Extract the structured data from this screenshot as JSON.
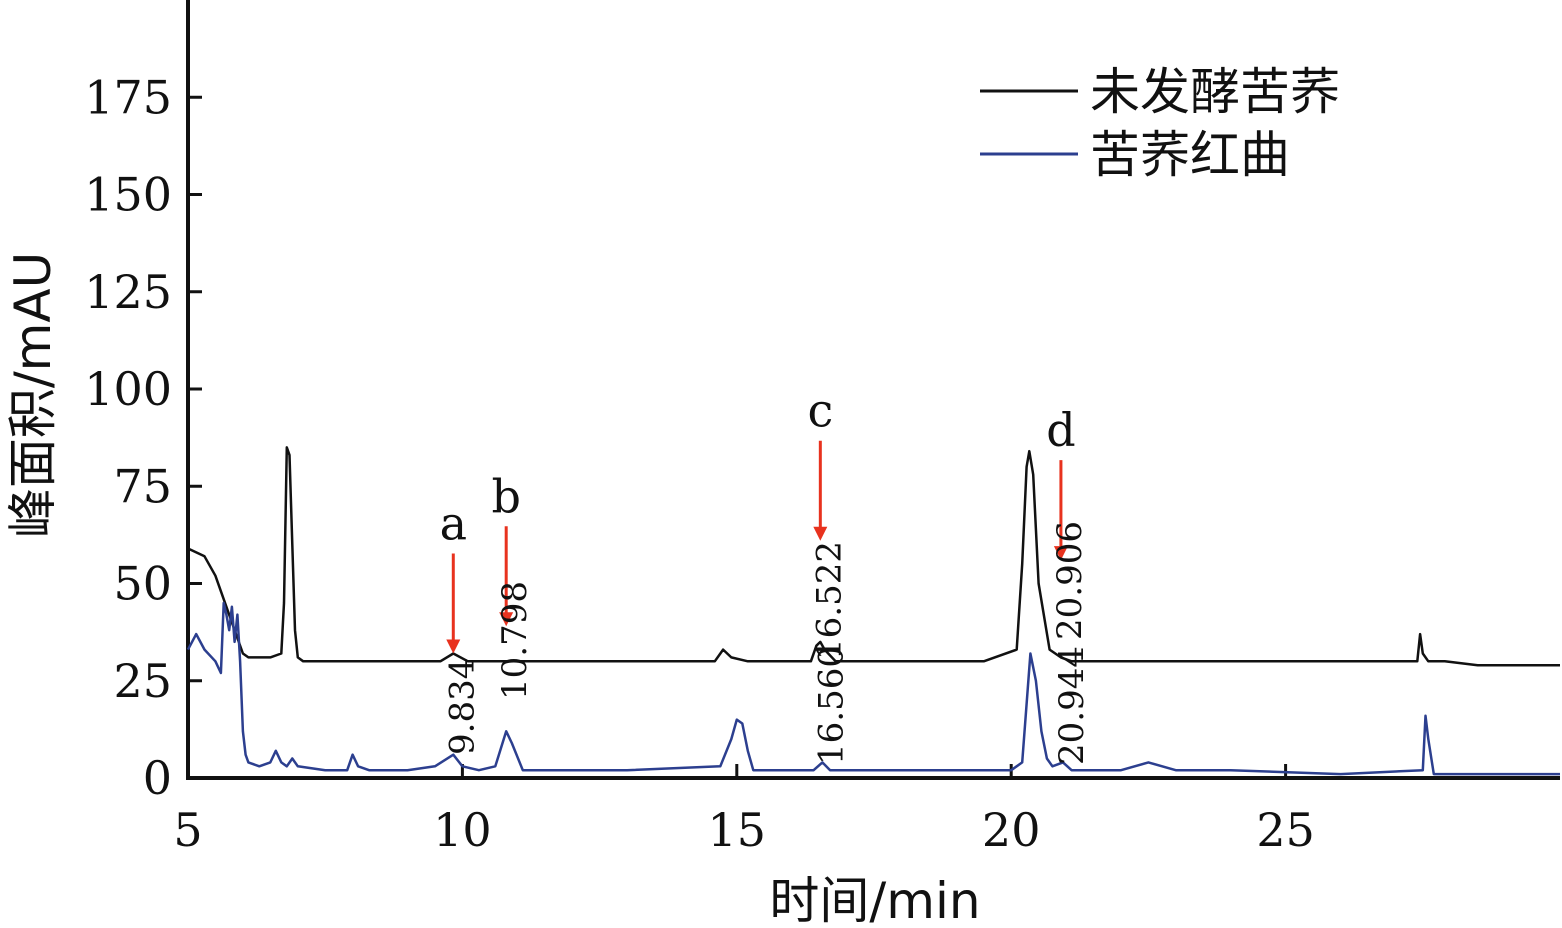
{
  "chart_data": {
    "type": "line",
    "title": "",
    "xlabel": "时间/min",
    "ylabel": "峰面积/mAU",
    "xlim": [
      5,
      30
    ],
    "ylim": [
      0,
      200
    ],
    "xticks": [
      5,
      10,
      15,
      20,
      25
    ],
    "yticks": [
      0,
      25,
      50,
      75,
      100,
      125,
      150,
      175
    ],
    "grid": false,
    "legend_position": "top-right",
    "series": [
      {
        "name": "未发酵苦荞",
        "color": "#111111",
        "x": [
          5.0,
          5.3,
          5.5,
          5.7,
          5.9,
          6.0,
          6.1,
          6.3,
          6.5,
          6.7,
          6.75,
          6.8,
          6.85,
          6.9,
          6.95,
          7.0,
          7.1,
          7.5,
          8.0,
          9.0,
          9.6,
          9.834,
          10.1,
          10.5,
          10.798,
          11.0,
          12.0,
          14.6,
          14.75,
          14.9,
          15.2,
          16.0,
          16.35,
          16.45,
          16.522,
          16.6,
          16.8,
          17.5,
          19.5,
          20.1,
          20.2,
          20.28,
          20.33,
          20.4,
          20.5,
          20.7,
          20.906,
          21.1,
          22.0,
          24.0,
          26.0,
          27.4,
          27.45,
          27.5,
          27.6,
          27.9,
          28.5,
          30.0
        ],
        "values": [
          59,
          57,
          52,
          44,
          36,
          32,
          31,
          31,
          31,
          32,
          45,
          85,
          83,
          60,
          38,
          31,
          30,
          30,
          30,
          30,
          30,
          32,
          30,
          30,
          30,
          30,
          30,
          30,
          33,
          31,
          30,
          30,
          30,
          34,
          35,
          33,
          30,
          30,
          30,
          33,
          55,
          80,
          84,
          78,
          50,
          33,
          31,
          30,
          30,
          30,
          30,
          30,
          37,
          32,
          30,
          30,
          29,
          29
        ]
      },
      {
        "name": "苦荞红曲",
        "color": "#2c3f8f",
        "x": [
          5.0,
          5.15,
          5.3,
          5.5,
          5.6,
          5.65,
          5.7,
          5.75,
          5.8,
          5.85,
          5.9,
          5.95,
          6.0,
          6.05,
          6.1,
          6.3,
          6.5,
          6.6,
          6.7,
          6.8,
          6.9,
          7.0,
          7.5,
          7.9,
          8.0,
          8.1,
          8.3,
          9.0,
          9.5,
          9.834,
          10.0,
          10.3,
          10.6,
          10.798,
          10.9,
          11.1,
          11.5,
          13.0,
          14.7,
          14.9,
          15.0,
          15.1,
          15.2,
          15.3,
          15.5,
          16.0,
          16.4,
          16.56,
          16.7,
          17.0,
          19.0,
          20.0,
          20.2,
          20.35,
          20.45,
          20.55,
          20.65,
          20.75,
          20.944,
          21.1,
          22.0,
          22.5,
          23.0,
          24.0,
          26.0,
          27.5,
          27.55,
          27.6,
          27.7,
          28.0,
          30.0
        ],
        "values": [
          33,
          37,
          33,
          30,
          27,
          45,
          42,
          38,
          44,
          35,
          42,
          30,
          12,
          6,
          4,
          3,
          4,
          7,
          4,
          3,
          5,
          3,
          2,
          2,
          6,
          3,
          2,
          2,
          3,
          6,
          3,
          2,
          3,
          12,
          9,
          2,
          2,
          2,
          3,
          10,
          15,
          14,
          7,
          2,
          2,
          2,
          2,
          4,
          2,
          2,
          2,
          2,
          4,
          32,
          25,
          12,
          5,
          3,
          4,
          2,
          2,
          4,
          2,
          2,
          1,
          2,
          16,
          10,
          1,
          1,
          1
        ]
      }
    ],
    "annotations": [
      {
        "letter": "a",
        "time": "9.834",
        "series": "苦荞红曲"
      },
      {
        "letter": "b",
        "time": "10.798",
        "series": "苦荞红曲"
      },
      {
        "letter": "c",
        "time": "16.522",
        "series": "未发酵苦荞"
      },
      {
        "letter": "c",
        "time": "16.560",
        "series": "苦荞红曲"
      },
      {
        "letter": "d",
        "time": "20.906",
        "series": "未发酵苦荞"
      },
      {
        "letter": "d",
        "time": "20.944",
        "series": "苦荞红曲"
      }
    ],
    "arrows": [
      {
        "letter": "a",
        "x": 9.834,
        "y": 32
      },
      {
        "letter": "b",
        "x": 10.798,
        "y": 39
      },
      {
        "letter": "c",
        "x": 16.522,
        "y": 61
      },
      {
        "letter": "d",
        "x": 20.906,
        "y": 56
      }
    ],
    "arrow_color": "#e8321e"
  }
}
